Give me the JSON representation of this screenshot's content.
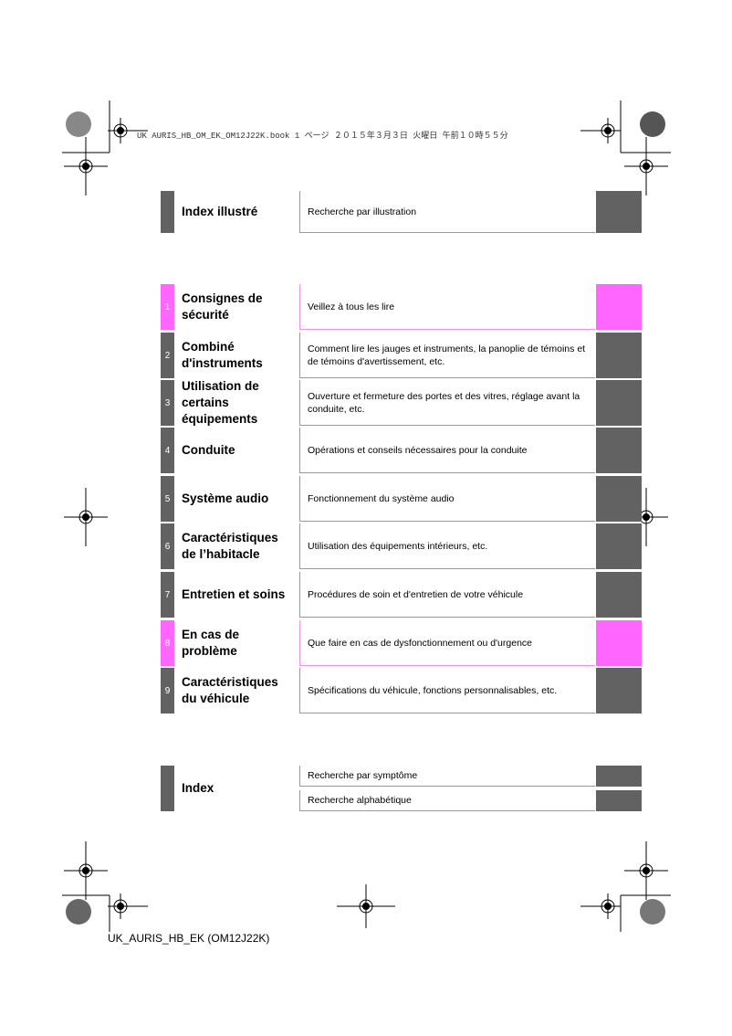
{
  "header_line": "UK AURIS_HB_OM_EK_OM12J22K.book  1 ページ  ２０１５年３月３日  火曜日  午前１０時５５分",
  "colors": {
    "tab_gray": "#626262",
    "tab_pink": "#ff66ff"
  },
  "top_section": {
    "title": "Index illustré",
    "description": "Recherche par illustration"
  },
  "chapters": [
    {
      "number": "1",
      "title": "Consignes de sécurité",
      "description": "Veillez à tous les lire",
      "highlight": true
    },
    {
      "number": "2",
      "title": "Combiné d'instruments",
      "description": "Comment lire les jauges et instruments, la panoplie de témoins et de témoins d'avertissement, etc.",
      "highlight": false
    },
    {
      "number": "3",
      "title": "Utilisation de certains équipements",
      "description": "Ouverture et fermeture des portes et des vitres, réglage avant la conduite, etc.",
      "highlight": false
    },
    {
      "number": "4",
      "title": "Conduite",
      "description": "Opérations et conseils nécessaires pour la conduite",
      "highlight": false
    },
    {
      "number": "5",
      "title": "Système audio",
      "description": "Fonctionnement du système audio",
      "highlight": false
    },
    {
      "number": "6",
      "title": "Caractéristiques de l’habitacle",
      "description": "Utilisation des équipements intérieurs, etc.",
      "highlight": false
    },
    {
      "number": "7",
      "title": "Entretien et soins",
      "description": "Procédures de soin et d'entretien de votre véhicule",
      "highlight": false
    },
    {
      "number": "8",
      "title": "En cas de problème",
      "description": "Que faire en cas de dysfonctionnement ou d'urgence",
      "highlight": true
    },
    {
      "number": "9",
      "title": "Caractéristiques du véhicule",
      "description": "Spécifications du véhicule, fonctions personnalisables, etc.",
      "highlight": false
    }
  ],
  "index_section": {
    "title": "Index",
    "items": [
      "Recherche par symptôme",
      "Recherche alphabétique"
    ]
  },
  "footer": "UK_AURIS_HB_EK (OM12J22K)"
}
